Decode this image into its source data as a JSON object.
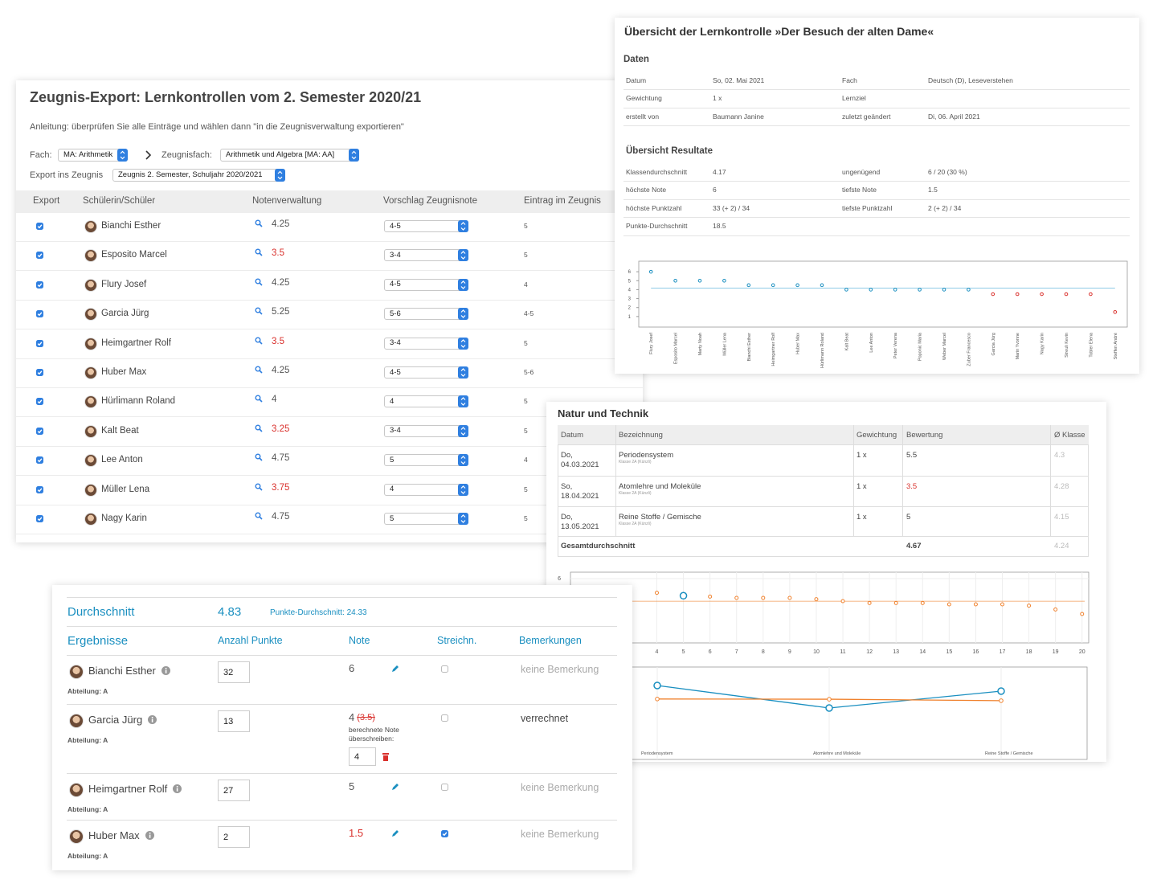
{
  "export": {
    "title": "Zeugnis-Export: Lernkontrollen vom 2. Semester 2020/21",
    "instruction": "Anleitung: überprüfen Sie alle Einträge und wählen dann \"in die Zeugnisverwaltung exportieren\"",
    "subject_label": "Fach:",
    "subject": "MA: Arithmetik",
    "report_subject_label": "Zeugnisfach:",
    "report_subject": "Arithmetik und Algebra [MA: AA]",
    "target_label": "Export ins Zeugnis",
    "target": "Zeugnis 2. Semester, Schuljahr 2020/2021",
    "columns": [
      "Export",
      "Schülerin/Schüler",
      "Notenverwaltung",
      "Vorschlag Zeugnisnote",
      "Eintrag im Zeugnis"
    ],
    "rows": [
      {
        "export": true,
        "name": "Bianchi Esther",
        "grade": 4.25,
        "proposal": "4-5",
        "entry": "5"
      },
      {
        "export": true,
        "name": "Esposito Marcel",
        "grade": 3.5,
        "grade_color": "#d9302c",
        "proposal": "3-4",
        "entry": "5"
      },
      {
        "export": true,
        "name": "Flury Josef",
        "grade": 4.25,
        "proposal": "4-5",
        "entry": "4"
      },
      {
        "export": true,
        "name": "Garcia Jürg",
        "grade": 5.25,
        "proposal": "5-6",
        "entry": "4-5"
      },
      {
        "export": true,
        "name": "Heimgartner Rolf",
        "grade": 3.5,
        "grade_color": "#d9302c",
        "proposal": "3-4",
        "entry": "5"
      },
      {
        "export": true,
        "name": "Huber Max",
        "grade": 4.25,
        "proposal": "4-5",
        "entry": "5-6"
      },
      {
        "export": true,
        "name": "Hürlimann Roland",
        "grade": 4,
        "proposal": "4",
        "entry": "5"
      },
      {
        "export": true,
        "name": "Kalt Beat",
        "grade": 3.25,
        "grade_color": "#d9302c",
        "proposal": "3-4",
        "entry": "5"
      },
      {
        "export": true,
        "name": "Lee Anton",
        "grade": 4.75,
        "proposal": "5",
        "entry": "4"
      },
      {
        "export": true,
        "name": "Müller Lena",
        "grade": 3.75,
        "grade_color": "#d9302c",
        "proposal": "4",
        "entry": "5"
      },
      {
        "export": true,
        "name": "Nagy Karin",
        "grade": 4.75,
        "proposal": "5",
        "entry": "5"
      }
    ]
  },
  "overview": {
    "title": "Übersicht der Lernkontrolle »Der Besuch der alten Dame«",
    "data_heading": "Daten",
    "data_rows": [
      [
        "Datum",
        "So, 02. Mai 2021",
        "Fach",
        "Deutsch (D), Leseverstehen"
      ],
      [
        "Gewichtung",
        "1 x",
        "Lernziel"
      ],
      [
        "erstellt von",
        "Baumann Janine",
        "zuletzt geändert",
        "Di, 06. April 2021"
      ]
    ],
    "results_heading": "Übersicht Resultate",
    "results_rows": [
      [
        "Klassendurchschnitt",
        4.17,
        "ungenügend",
        "6 / 20 (30 %)"
      ],
      [
        "höchste Note",
        6,
        "tiefste Note",
        1.5
      ],
      [
        "höchste Punktzahl",
        "33 (+ 2) / 34",
        "tiefste Punktzahl",
        "2 (+ 2) / 34"
      ],
      [
        "Punkte-Durchschnitt",
        18.5
      ]
    ]
  },
  "natur": {
    "title": "Natur und Technik",
    "columns": [
      "Datum",
      "Bezeichnung",
      "Gewichtung",
      "Bewertung",
      "Ø Klasse"
    ],
    "rows": [
      {
        "date": "Do, 04.03.2021",
        "name": "Periodensystem",
        "class": "Klasse 2A (Künzli)",
        "weight": "1 x",
        "grade": 5.5,
        "class_avg": 4.3
      },
      {
        "date": "So, 18.04.2021",
        "name": "Atomlehre und Moleküle",
        "class": "Klasse 2A (Künzli)",
        "weight": "1 x",
        "grade": 3.5,
        "grade_color": "#d9302c",
        "class_avg": 4.28
      },
      {
        "date": "Do, 13.05.2021",
        "name": "Reine Stoffe / Gemische",
        "class": "Klasse 2A (Künzli)",
        "weight": "1 x",
        "grade": 5,
        "class_avg": 4.15
      }
    ],
    "total_label": "Gesamtdurchschnitt",
    "total": 4.67,
    "total_class_avg": 4.24
  },
  "results": {
    "average_label": "Durchschnitt",
    "average": 4.83,
    "points_average": "Punkte-Durchschnitt: 24.33",
    "columns": [
      "Ergebnisse",
      "Anzahl Punkte",
      "Note",
      "Streichn.",
      "Bemerkungen"
    ],
    "rows": [
      {
        "name": "Bianchi Esther",
        "department": "Abteilung: A",
        "points": 32,
        "grade": 6,
        "struck": false,
        "remark": "keine Bemerkung",
        "remark_color": "#aaa"
      },
      {
        "name": "Garcia Jürg",
        "department": "Abteilung: A",
        "points": 13,
        "grade": 4,
        "calculated_grade": "(3.5)",
        "override_label": "berechnete Note überschreiben:",
        "override": 4,
        "struck": false,
        "remark": "verrechnet",
        "remark_color": "#444"
      },
      {
        "name": "Heimgartner Rolf",
        "department": "Abteilung: A",
        "points": 27,
        "grade": 5,
        "struck": false,
        "remark": "keine Bemerkung",
        "remark_color": "#aaa"
      },
      {
        "name": "Huber Max",
        "department": "Abteilung: A",
        "points": 2,
        "grade": 1.5,
        "grade_color": "#d9302c",
        "struck": true,
        "remark": "keine Bemerkung",
        "remark_color": "#aaa"
      }
    ]
  },
  "chart_data": [
    {
      "type": "dot",
      "categories": [
        "Flury Josef",
        "Esposito Marcel",
        "Marty Noah",
        "Müller Lena",
        "Bianchi Esther",
        "Heimgartner Rolf",
        "Huber Max",
        "Hürlimann Roland",
        "Kalt Beat",
        "Lee Anton",
        "Peter Verena",
        "Poponic Maria",
        "Weber Marcel",
        "Zuber Francesco",
        "Garcia Jürg",
        "Marin Yvonne",
        "Nagy Karin",
        "Streuli Kevin",
        "Tobler Elena",
        "Steffen André"
      ],
      "values": [
        6,
        5,
        5,
        5,
        4.5,
        4.5,
        4.5,
        4.5,
        4,
        4,
        4,
        4,
        4,
        4,
        3.5,
        3.5,
        3.5,
        3.5,
        3.5,
        1.5
      ],
      "colors": [
        "#1a8fc0",
        "#1a8fc0",
        "#1a8fc0",
        "#1a8fc0",
        "#1a8fc0",
        "#1a8fc0",
        "#1a8fc0",
        "#1a8fc0",
        "#1a8fc0",
        "#1a8fc0",
        "#1a8fc0",
        "#1a8fc0",
        "#1a8fc0",
        "#1a8fc0",
        "#d9302c",
        "#d9302c",
        "#d9302c",
        "#d9302c",
        "#d9302c",
        "#d9302c"
      ],
      "average_color": "#8fcbe6",
      "ylim": [
        0,
        7
      ],
      "yticks": [
        1,
        2,
        3,
        4,
        5,
        6
      ]
    },
    {
      "type": "scatter",
      "x": [
        4,
        6,
        7,
        8,
        9,
        10,
        11,
        12,
        13,
        14,
        15,
        16,
        17,
        18,
        19,
        20
      ],
      "values": [
        4.9,
        4.6,
        4.5,
        4.5,
        4.5,
        4.4,
        4.25,
        4.1,
        4.1,
        4.1,
        4,
        4,
        4,
        3.9,
        3.6,
        3.25
      ],
      "color": "#f0812c",
      "highlight": {
        "x": 5,
        "color": "#1a8fc0"
      },
      "xlim": [
        0.75,
        20.25
      ],
      "ylim": [
        1,
        6.5
      ],
      "xticks": [
        4,
        5,
        6,
        7,
        8,
        9,
        10,
        11,
        12,
        13,
        14,
        15,
        16,
        17,
        18,
        19,
        20
      ],
      "yticks": [
        6
      ],
      "grid": true
    },
    {
      "type": "line",
      "categories": [
        "Periodensystem",
        "Atomlehre und Moleküle",
        "Reine Stoffe / Gemische"
      ],
      "series": [
        {
          "color": "#1a8fc0",
          "values": [
            5.5,
            3.5,
            5
          ]
        },
        {
          "color": "#f0812c",
          "values": [
            4.3,
            4.28,
            4.15
          ]
        }
      ],
      "ylim": [
        0,
        7
      ],
      "grid": true
    }
  ]
}
